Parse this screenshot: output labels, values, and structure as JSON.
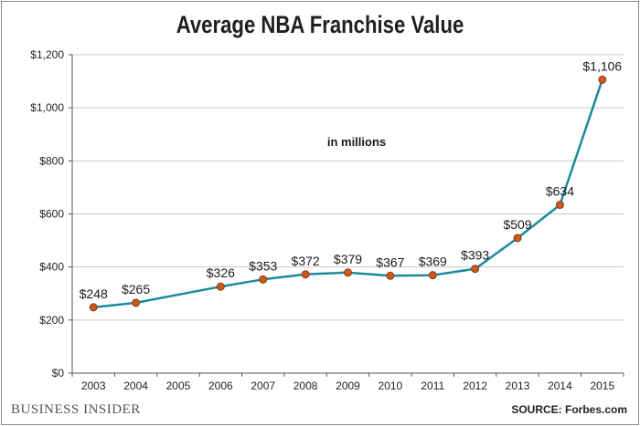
{
  "chart_data": {
    "type": "line",
    "title": "Average NBA Franchise Value",
    "annotation": "in millions",
    "xlabel": "",
    "ylabel": "",
    "categories": [
      "2003",
      "2004",
      "2005",
      "2006",
      "2007",
      "2008",
      "2009",
      "2010",
      "2011",
      "2012",
      "2013",
      "2014",
      "2015"
    ],
    "series": [
      {
        "x": [
          "2003",
          "2004",
          "2006",
          "2007",
          "2008",
          "2009",
          "2010",
          "2011",
          "2012",
          "2013",
          "2014",
          "2015"
        ],
        "values": [
          248,
          265,
          326,
          353,
          372,
          379,
          367,
          369,
          393,
          509,
          634,
          1106
        ],
        "labels": [
          "$248",
          "$265",
          "$326",
          "$353",
          "$372",
          "$379",
          "$367",
          "$369",
          "$393",
          "$509",
          "$634",
          "$1,106"
        ]
      }
    ],
    "ylim": [
      0,
      1200
    ],
    "yticks": [
      0,
      200,
      400,
      600,
      800,
      1000,
      1200
    ],
    "ytick_labels": [
      "$0",
      "$200",
      "$400",
      "$600",
      "$800",
      "$1,000",
      "$1,200"
    ],
    "grid": true,
    "legend": "none",
    "colors": {
      "line": "#1a8aa0",
      "marker_fill": "#cc5a1e",
      "marker_edge": "#8a3a10",
      "grid": "#c8c8c8"
    }
  },
  "footer": {
    "brand": "BUSINESS INSIDER",
    "source": "SOURCE: Forbes.com"
  }
}
